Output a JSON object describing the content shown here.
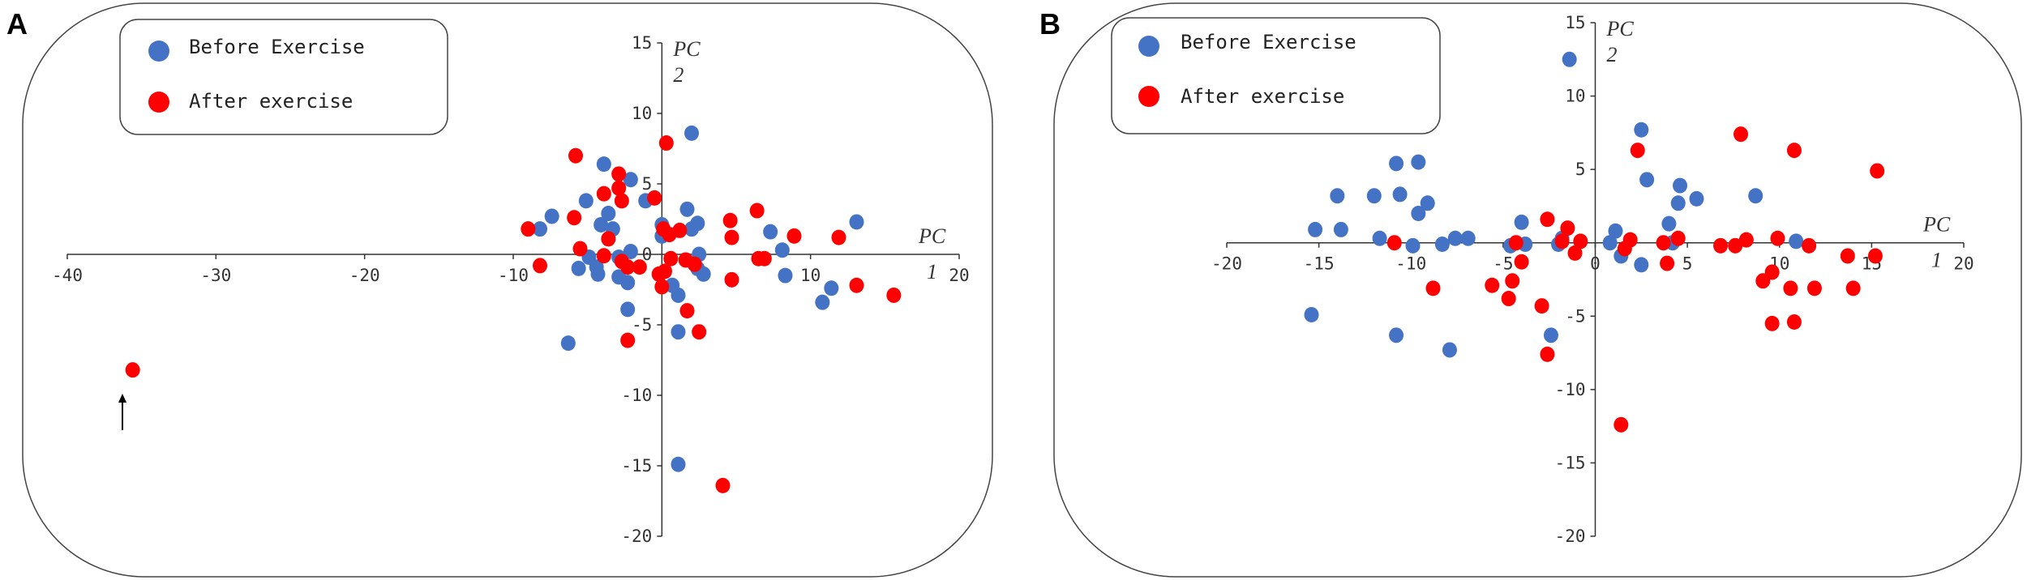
{
  "colors": {
    "before": "#4472C4",
    "after": "#FF0000"
  },
  "chart_data": [
    {
      "type": "scatter",
      "panel_label": "A",
      "xlabel": [
        "PC",
        "1"
      ],
      "ylabel": [
        "PC",
        "2"
      ],
      "xlim": [
        -40,
        20
      ],
      "ylim": [
        -20,
        15
      ],
      "xticks": [
        -40,
        -30,
        -20,
        -10,
        0,
        10,
        20
      ],
      "yticks": [
        15,
        10,
        5,
        0,
        -5,
        -10,
        -15,
        -20
      ],
      "legend": "top-left",
      "annotation": "arrow pointing to outlier at (-35.6, -8.2)",
      "series": [
        {
          "name": "Before Exercise",
          "color": "#4472C4",
          "points": [
            [
              2.0,
              8.6
            ],
            [
              -3.9,
              6.4
            ],
            [
              -2.1,
              5.3
            ],
            [
              -5.1,
              3.8
            ],
            [
              -1.1,
              3.8
            ],
            [
              1.7,
              3.2
            ],
            [
              -3.6,
              2.9
            ],
            [
              -7.4,
              2.7
            ],
            [
              -8.2,
              1.8
            ],
            [
              -4.1,
              2.1
            ],
            [
              -3.3,
              1.8
            ],
            [
              0,
              2.1
            ],
            [
              2.4,
              2.2
            ],
            [
              2.0,
              1.8
            ],
            [
              0,
              1.3
            ],
            [
              13.1,
              2.3
            ],
            [
              7.3,
              1.6
            ],
            [
              8.1,
              0.3
            ],
            [
              -2.1,
              0.2
            ],
            [
              2.5,
              0
            ],
            [
              -4.9,
              -0.2
            ],
            [
              -2.9,
              -0.2
            ],
            [
              -5.6,
              -1.0
            ],
            [
              -4.4,
              -0.9
            ],
            [
              -4.3,
              -1.4
            ],
            [
              -2.9,
              -1.6
            ],
            [
              -2.3,
              -2.0
            ],
            [
              2.4,
              -1.0
            ],
            [
              2.8,
              -1.4
            ],
            [
              0.7,
              -2.2
            ],
            [
              1.1,
              -2.9
            ],
            [
              8.3,
              -1.5
            ],
            [
              11.4,
              -2.4
            ],
            [
              10.8,
              -3.4
            ],
            [
              -2.3,
              -3.9
            ],
            [
              1.1,
              -5.5
            ],
            [
              -6.3,
              -6.3
            ],
            [
              1.1,
              -14.9
            ]
          ]
        },
        {
          "name": "After exercise",
          "color": "#FF0000",
          "points": [
            [
              -35.6,
              -8.2
            ],
            [
              0.3,
              7.9
            ],
            [
              -5.8,
              7.0
            ],
            [
              -2.9,
              5.7
            ],
            [
              -2.9,
              4.7
            ],
            [
              -3.9,
              4.3
            ],
            [
              -2.7,
              3.8
            ],
            [
              -0.5,
              4.0
            ],
            [
              -5.9,
              2.6
            ],
            [
              -9.0,
              1.8
            ],
            [
              -3.6,
              1.1
            ],
            [
              0.1,
              1.8
            ],
            [
              0.5,
              1.4
            ],
            [
              1.2,
              1.7
            ],
            [
              4.6,
              2.4
            ],
            [
              4.7,
              1.2
            ],
            [
              6.4,
              3.1
            ],
            [
              8.9,
              1.3
            ],
            [
              11.9,
              1.2
            ],
            [
              -5.5,
              0.4
            ],
            [
              -3.9,
              -0.1
            ],
            [
              -8.2,
              -0.8
            ],
            [
              -2.7,
              -0.5
            ],
            [
              -2.3,
              -0.9
            ],
            [
              -1.5,
              -0.9
            ],
            [
              0.2,
              -1.2
            ],
            [
              -0.2,
              -1.4
            ],
            [
              0.6,
              -0.3
            ],
            [
              1.6,
              -0.4
            ],
            [
              2.2,
              -0.7
            ],
            [
              0,
              -2.3
            ],
            [
              4.7,
              -1.8
            ],
            [
              6.5,
              -0.3
            ],
            [
              6.9,
              -0.3
            ],
            [
              13.1,
              -2.2
            ],
            [
              15.6,
              -2.9
            ],
            [
              1.7,
              -4.0
            ],
            [
              2.5,
              -5.5
            ],
            [
              -2.3,
              -6.1
            ],
            [
              4.1,
              -16.4
            ]
          ]
        }
      ]
    },
    {
      "type": "scatter",
      "panel_label": "B",
      "xlabel": [
        "PC",
        "1"
      ],
      "ylabel": [
        "PC",
        "2"
      ],
      "xlim": [
        -20,
        20
      ],
      "ylim": [
        -20,
        15
      ],
      "xticks": [
        -20,
        -15,
        -10,
        -5,
        0,
        5,
        10,
        15,
        20
      ],
      "yticks": [
        15,
        10,
        5,
        0,
        -5,
        -10,
        -15,
        -20
      ],
      "legend": "top-left",
      "series": [
        {
          "name": "Before Exercise",
          "color": "#4472C4",
          "points": [
            [
              -1.4,
              12.5
            ],
            [
              2.5,
              7.7
            ],
            [
              2.8,
              4.3
            ],
            [
              -10.8,
              5.4
            ],
            [
              -9.6,
              5.5
            ],
            [
              -14.0,
              3.2
            ],
            [
              -12.0,
              3.2
            ],
            [
              -10.6,
              3.3
            ],
            [
              -9.1,
              2.7
            ],
            [
              -9.6,
              2.0
            ],
            [
              -15.2,
              0.9
            ],
            [
              -13.8,
              0.9
            ],
            [
              -11.7,
              0.3
            ],
            [
              -9.9,
              -0.2
            ],
            [
              -8.3,
              -0.1
            ],
            [
              -7.6,
              0.3
            ],
            [
              -6.9,
              0.3
            ],
            [
              -4.6,
              -0.2
            ],
            [
              -4.0,
              1.4
            ],
            [
              -3.8,
              -0.1
            ],
            [
              -2.0,
              -0.1
            ],
            [
              -1.8,
              0.3
            ],
            [
              1.1,
              0.8
            ],
            [
              0.8,
              0
            ],
            [
              1.4,
              -0.9
            ],
            [
              2.5,
              -1.5
            ],
            [
              4.0,
              1.3
            ],
            [
              4.2,
              0
            ],
            [
              4.5,
              2.7
            ],
            [
              4.6,
              3.9
            ],
            [
              5.5,
              3.0
            ],
            [
              8.7,
              3.2
            ],
            [
              10.9,
              0.1
            ],
            [
              -15.4,
              -4.9
            ],
            [
              -10.8,
              -6.3
            ],
            [
              -7.9,
              -7.3
            ],
            [
              -2.4,
              -6.3
            ]
          ]
        },
        {
          "name": "After exercise",
          "color": "#FF0000",
          "points": [
            [
              2.3,
              6.3
            ],
            [
              7.9,
              7.4
            ],
            [
              10.8,
              6.3
            ],
            [
              15.3,
              4.9
            ],
            [
              -2.6,
              1.6
            ],
            [
              -1.5,
              1.0
            ],
            [
              -0.8,
              0.1
            ],
            [
              -1.8,
              0.1
            ],
            [
              -1.1,
              -0.7
            ],
            [
              -4.3,
              0
            ],
            [
              -4.0,
              -1.3
            ],
            [
              -10.9,
              0
            ],
            [
              -8.8,
              -3.1
            ],
            [
              -5.6,
              -2.9
            ],
            [
              -4.5,
              -2.6
            ],
            [
              -4.7,
              -3.8
            ],
            [
              -2.9,
              -4.3
            ],
            [
              -2.6,
              -7.6
            ],
            [
              1.4,
              -12.4
            ],
            [
              1.6,
              -0.4
            ],
            [
              1.9,
              0.2
            ],
            [
              3.7,
              0
            ],
            [
              4.5,
              0.3
            ],
            [
              3.9,
              -1.4
            ],
            [
              6.8,
              -0.2
            ],
            [
              7.6,
              -0.2
            ],
            [
              8.2,
              0.2
            ],
            [
              9.9,
              0.3
            ],
            [
              11.6,
              -0.2
            ],
            [
              9.1,
              -2.6
            ],
            [
              9.6,
              -2.0
            ],
            [
              10.6,
              -3.1
            ],
            [
              11.9,
              -3.1
            ],
            [
              14.0,
              -3.1
            ],
            [
              13.7,
              -0.9
            ],
            [
              15.2,
              -0.9
            ],
            [
              9.6,
              -5.5
            ],
            [
              10.8,
              -5.4
            ]
          ]
        }
      ]
    }
  ]
}
